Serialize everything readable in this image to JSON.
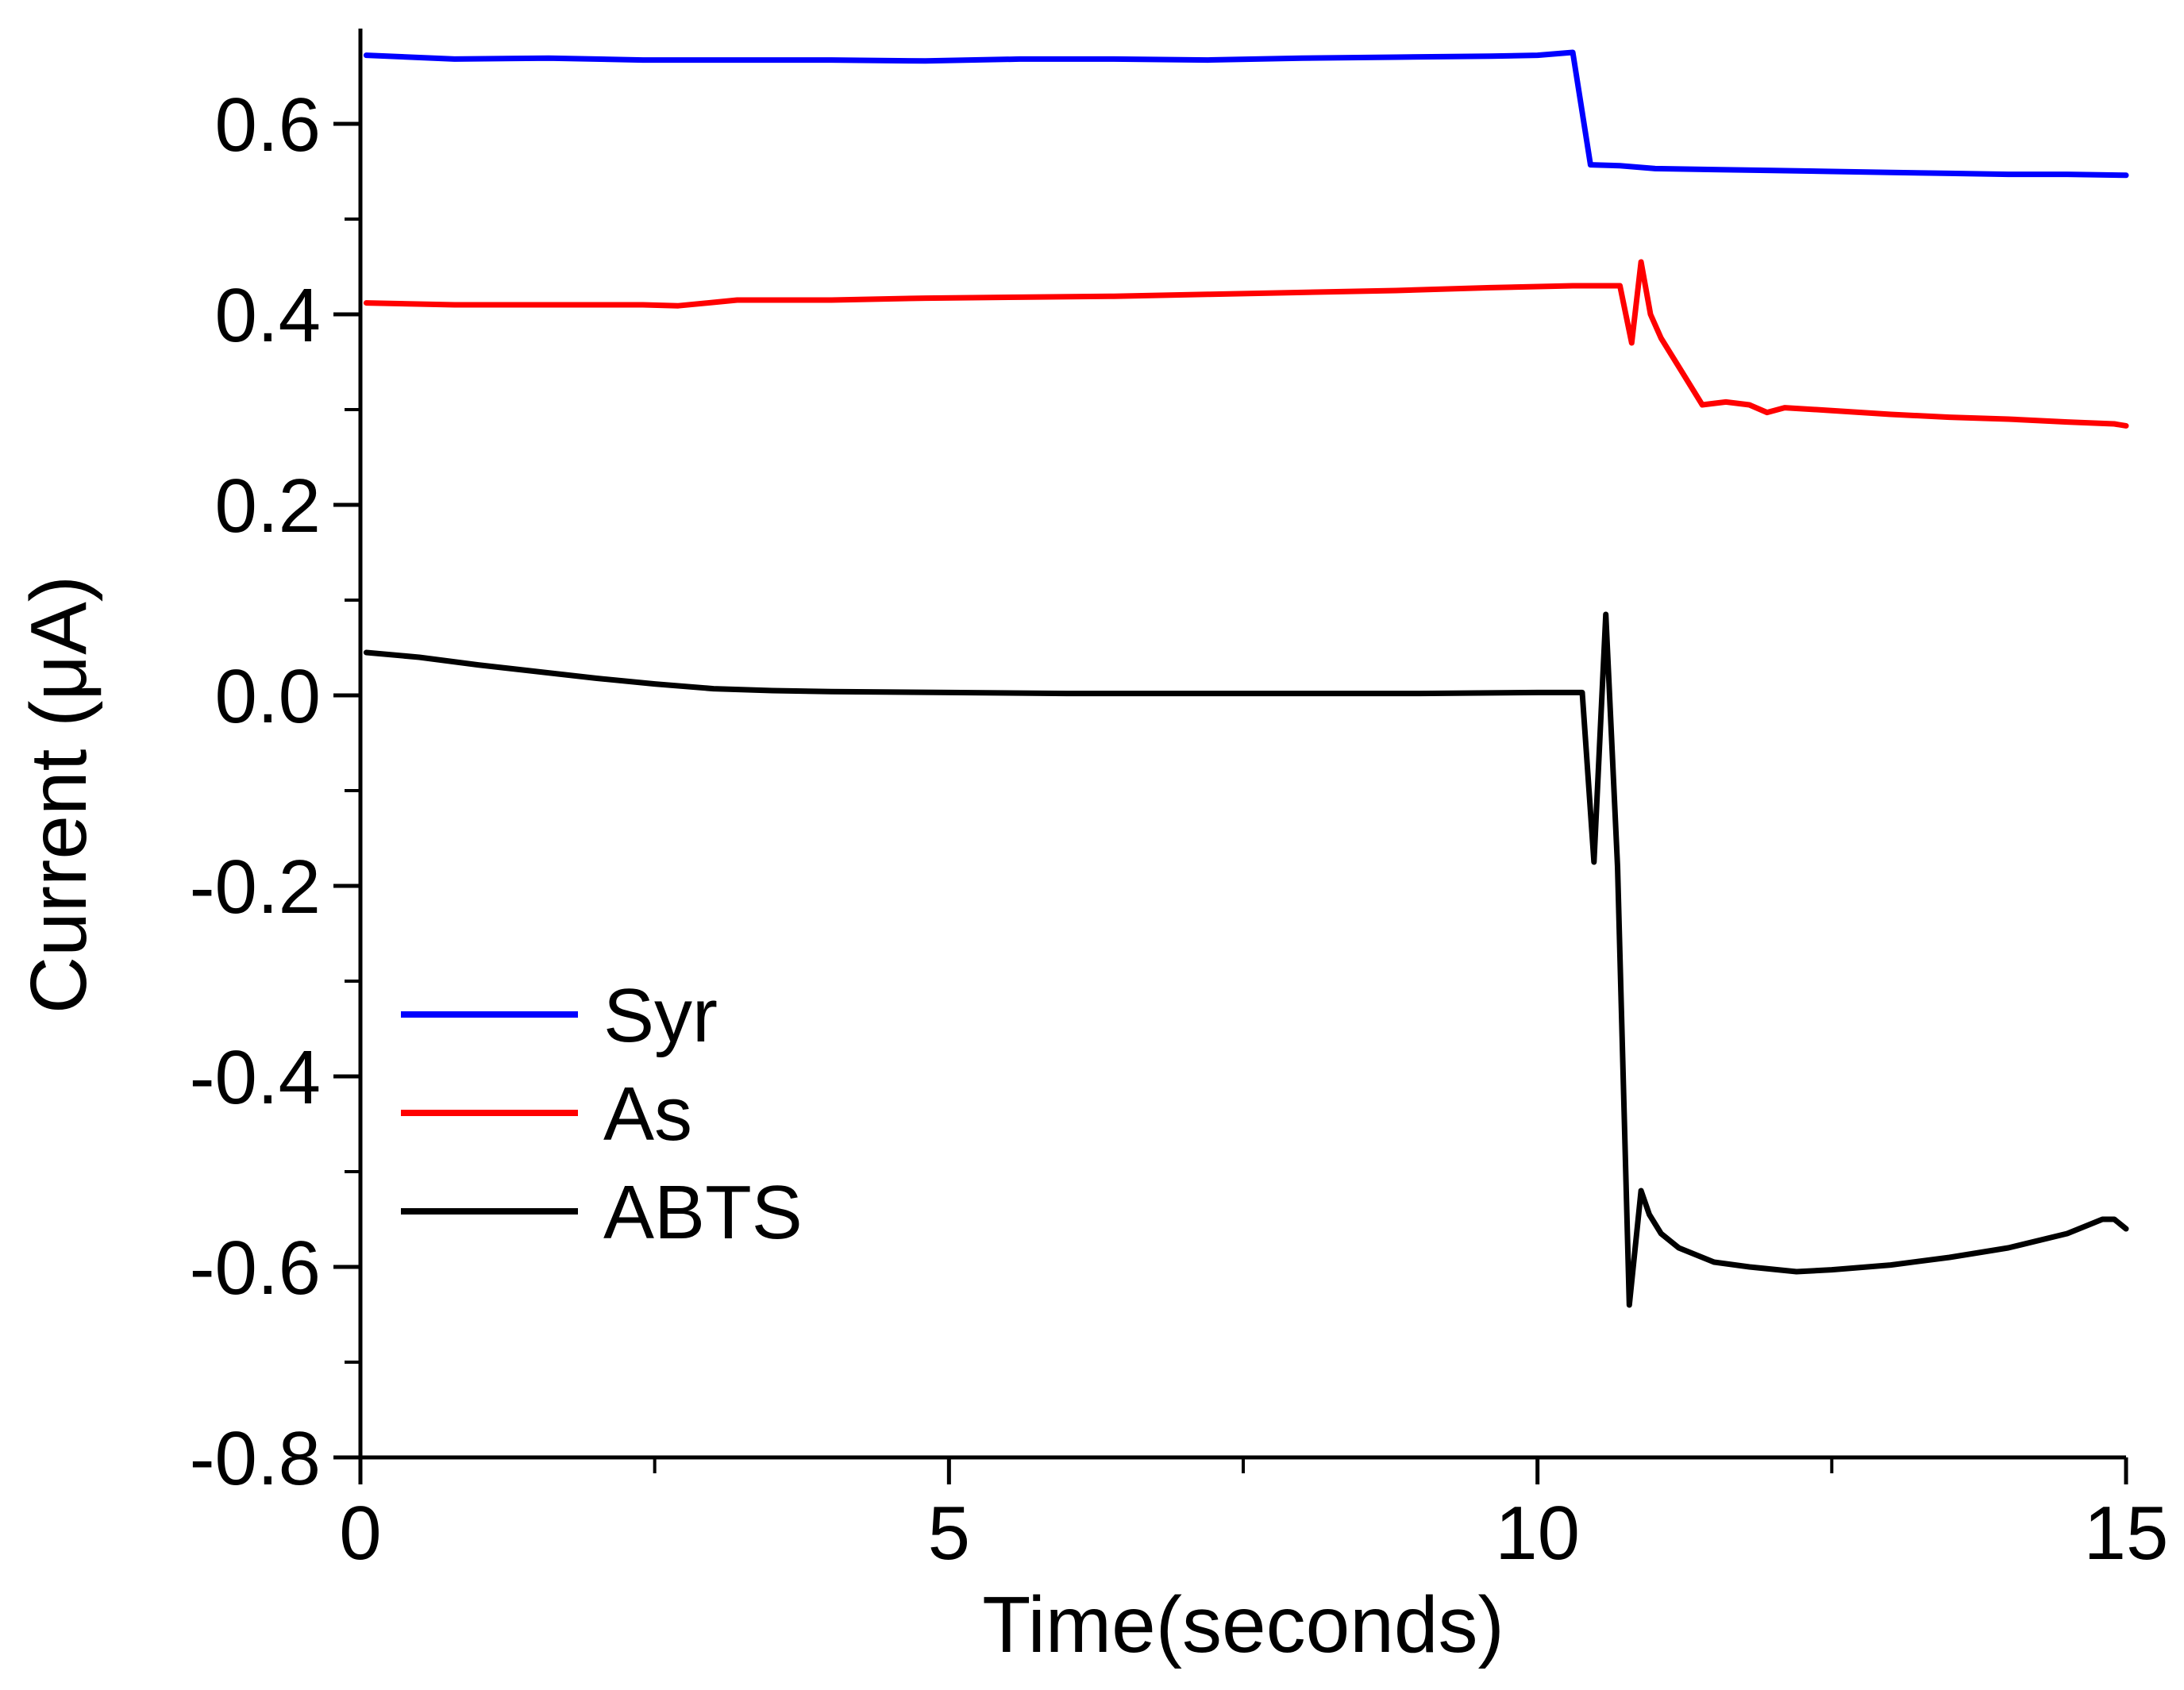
{
  "chart_data": {
    "type": "line",
    "xlabel": "Time(seconds)",
    "ylabel": "Current (μA)",
    "xlim": [
      0,
      15
    ],
    "ylim": [
      -0.8,
      0.7
    ],
    "x_ticks": [
      0,
      5,
      10,
      15
    ],
    "x_tick_labels": [
      "0",
      "5",
      "10",
      "15"
    ],
    "y_ticks": [
      -0.8,
      -0.6,
      -0.4,
      -0.2,
      0.0,
      0.2,
      0.4,
      0.6
    ],
    "y_tick_labels": [
      "-0.8",
      "-0.6",
      "-0.4",
      "-0.2",
      "0.0",
      "0.2",
      "0.4",
      "0.6"
    ],
    "grid": false,
    "legend_position": "lower-left",
    "series": [
      {
        "name": "Syr",
        "color": "#0000ff",
        "x": [
          0.05,
          0.8,
          1.6,
          2.4,
          3.2,
          4.0,
          4.8,
          5.6,
          6.4,
          7.2,
          8.0,
          8.8,
          9.6,
          10.0,
          10.3,
          10.37,
          10.45,
          10.7,
          11.0,
          11.5,
          12.0,
          12.5,
          13.0,
          13.5,
          14.0,
          14.5,
          15.0
        ],
        "y": [
          0.672,
          0.668,
          0.669,
          0.667,
          0.667,
          0.667,
          0.666,
          0.668,
          0.668,
          0.667,
          0.669,
          0.67,
          0.671,
          0.672,
          0.675,
          0.62,
          0.557,
          0.556,
          0.553,
          0.552,
          0.551,
          0.55,
          0.549,
          0.548,
          0.547,
          0.547,
          0.546
        ]
      },
      {
        "name": "As",
        "color": "#ff0000",
        "x": [
          0.05,
          0.8,
          1.6,
          2.4,
          2.7,
          3.2,
          4.0,
          4.8,
          5.6,
          6.4,
          7.2,
          8.0,
          8.8,
          9.6,
          10.3,
          10.7,
          10.8,
          10.88,
          10.96,
          11.05,
          11.2,
          11.4,
          11.6,
          11.8,
          11.95,
          12.1,
          12.5,
          13.0,
          13.5,
          14.0,
          14.5,
          14.9,
          15.0
        ],
        "y": [
          0.412,
          0.41,
          0.41,
          0.41,
          0.409,
          0.415,
          0.415,
          0.417,
          0.418,
          0.419,
          0.421,
          0.423,
          0.425,
          0.428,
          0.43,
          0.43,
          0.37,
          0.455,
          0.4,
          0.375,
          0.345,
          0.305,
          0.308,
          0.305,
          0.297,
          0.302,
          0.299,
          0.295,
          0.292,
          0.29,
          0.287,
          0.285,
          0.283
        ]
      },
      {
        "name": "ABTS",
        "color": "#000000",
        "x": [
          0.05,
          0.5,
          1.0,
          1.5,
          2.0,
          2.5,
          3.0,
          3.5,
          4.0,
          5.0,
          6.0,
          7.0,
          8.0,
          9.0,
          10.0,
          10.38,
          10.48,
          10.58,
          10.68,
          10.78,
          10.88,
          10.95,
          11.05,
          11.2,
          11.5,
          11.8,
          12.2,
          12.5,
          13.0,
          13.5,
          14.0,
          14.5,
          14.8,
          14.9,
          15.0
        ],
        "y": [
          0.045,
          0.04,
          0.032,
          0.025,
          0.018,
          0.012,
          0.007,
          0.005,
          0.004,
          0.003,
          0.002,
          0.002,
          0.002,
          0.002,
          0.003,
          0.003,
          -0.175,
          0.085,
          -0.18,
          -0.64,
          -0.52,
          -0.545,
          -0.565,
          -0.58,
          -0.595,
          -0.6,
          -0.605,
          -0.603,
          -0.598,
          -0.59,
          -0.58,
          -0.565,
          -0.55,
          -0.55,
          -0.56
        ]
      }
    ]
  }
}
